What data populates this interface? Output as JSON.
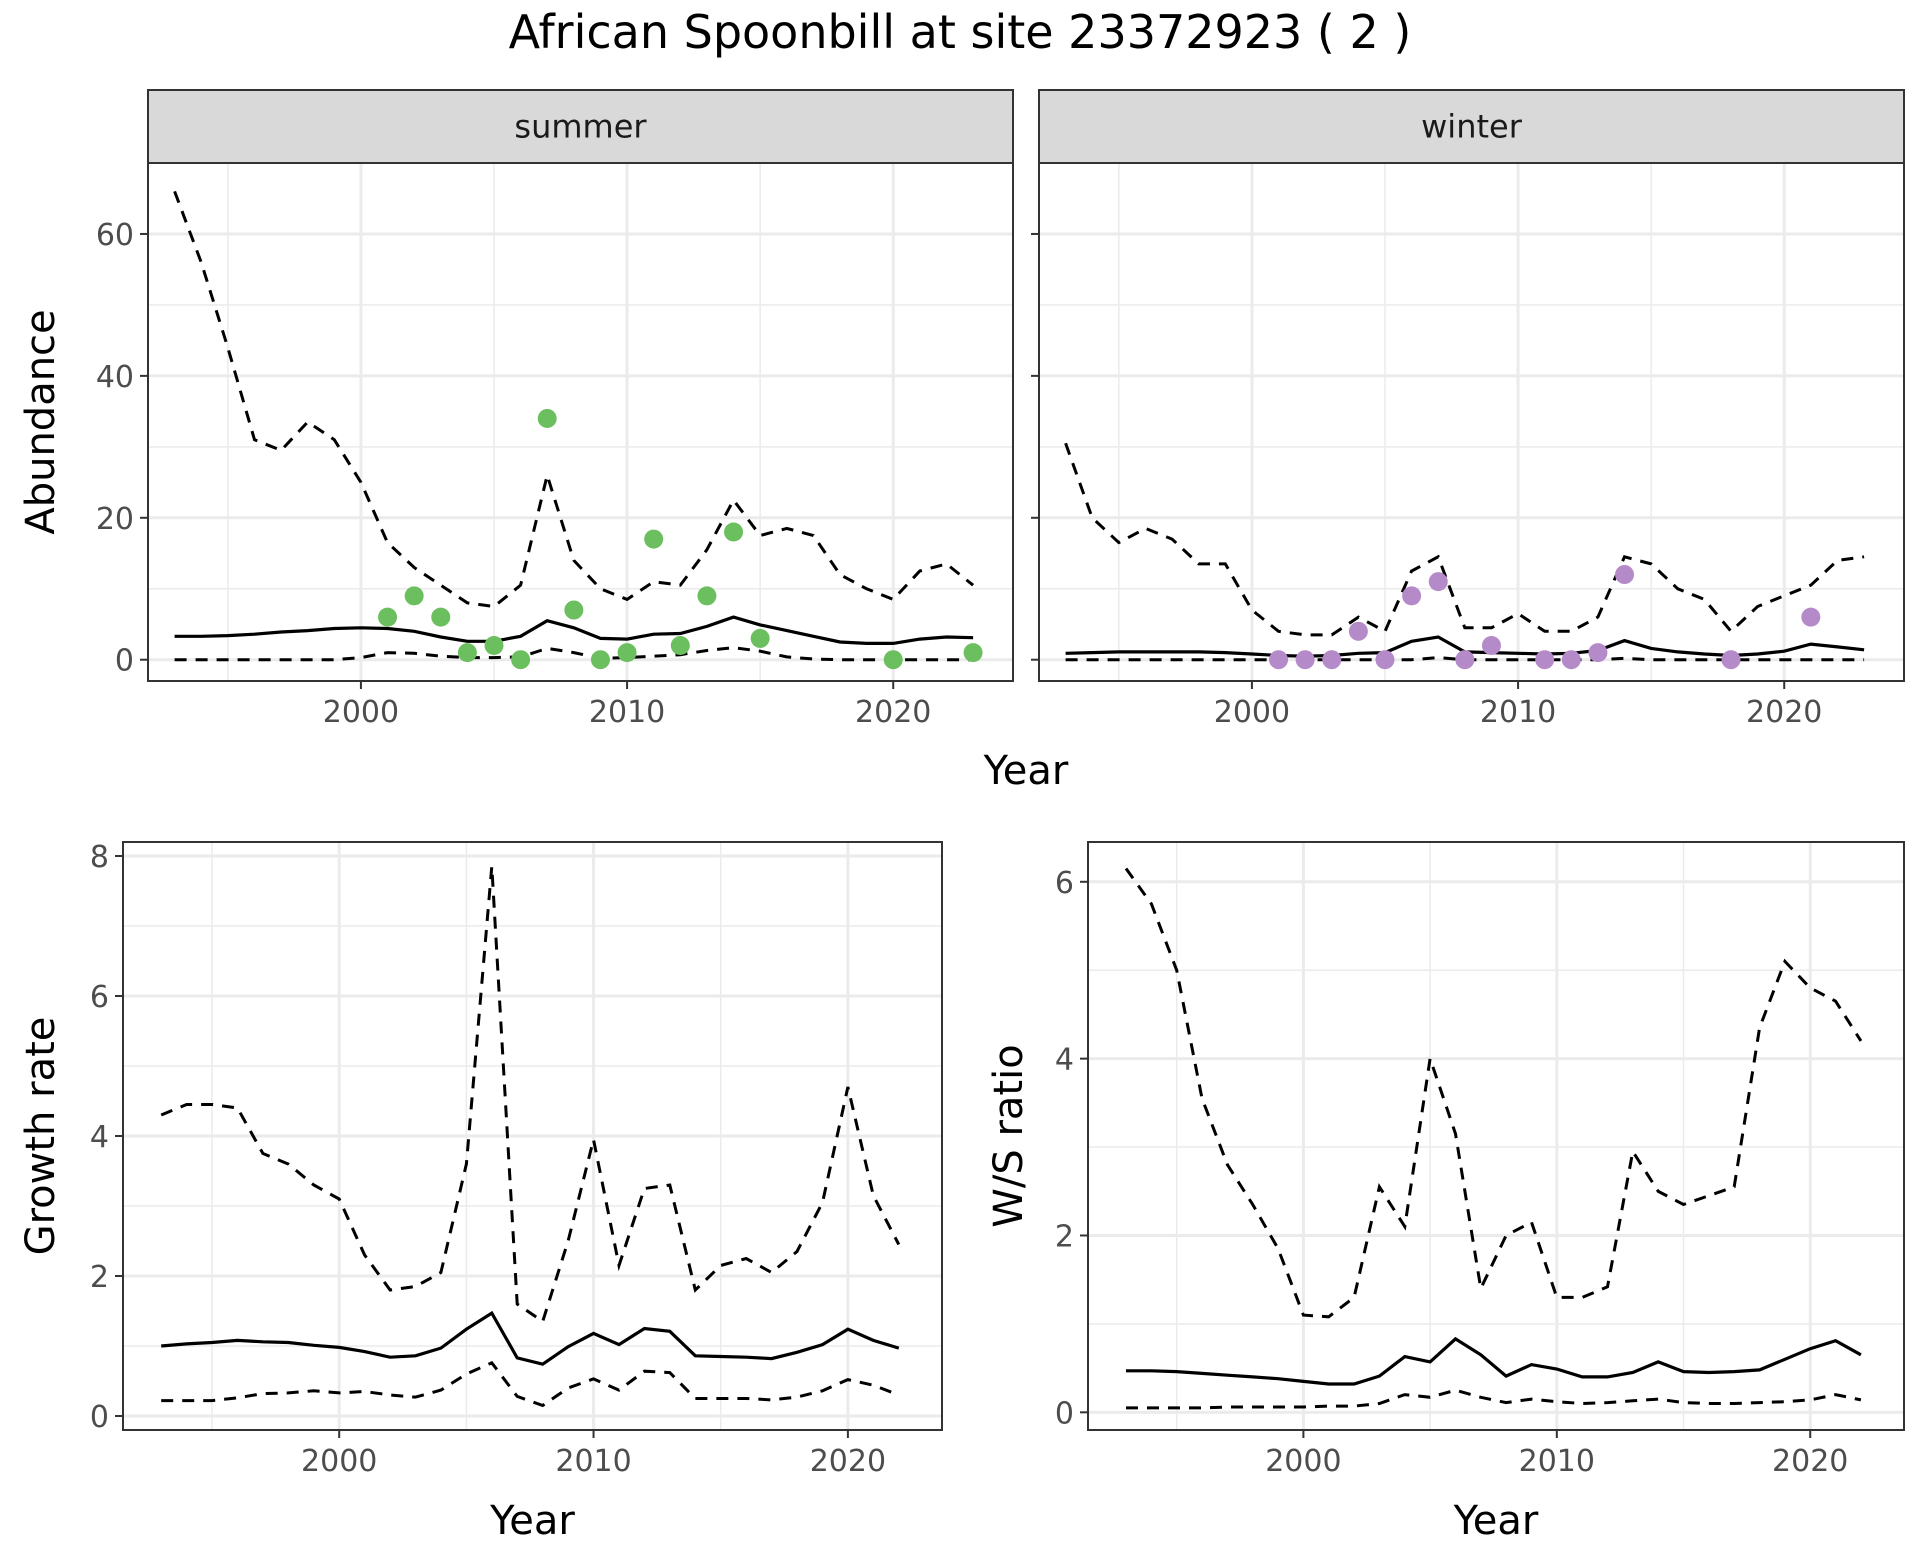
{
  "title": "African Spoonbill at site 23372923 ( 2 )",
  "colors": {
    "summer_points": "#6cbf5f",
    "winter_points": "#b58ac9",
    "line": "#000000",
    "grid": "#ebebeb",
    "strip_bg": "#d9d9d9",
    "border": "#333333"
  },
  "chart_data": [
    {
      "type": "line",
      "panel": "summer",
      "strip_label": "summer",
      "xlabel": "Year",
      "ylabel": "Abundance",
      "xlim": [
        1992,
        2024.5
      ],
      "ylim": [
        -3,
        70
      ],
      "x_ticks": [
        2000,
        2010,
        2020
      ],
      "x_tick_labels": [
        "2000",
        "2010",
        "2020"
      ],
      "y_ticks": [
        0,
        20,
        40,
        60
      ],
      "y_tick_labels": [
        "0",
        "20",
        "40",
        "60"
      ],
      "grid": true,
      "x": [
        1993,
        1994,
        1995,
        1996,
        1997,
        1998,
        1999,
        2000,
        2001,
        2002,
        2003,
        2004,
        2005,
        2006,
        2007,
        2008,
        2009,
        2010,
        2011,
        2012,
        2013,
        2014,
        2015,
        2016,
        2017,
        2018,
        2019,
        2020,
        2021,
        2022,
        2023
      ],
      "mean": [
        3.3,
        3.3,
        3.4,
        3.6,
        3.9,
        4.1,
        4.4,
        4.5,
        4.4,
        4.0,
        3.2,
        2.6,
        2.6,
        3.3,
        5.5,
        4.5,
        3.0,
        2.9,
        3.6,
        3.7,
        4.7,
        6.0,
        4.9,
        4.1,
        3.3,
        2.5,
        2.3,
        2.3,
        2.9,
        3.2,
        3.1
      ],
      "upper": [
        66,
        56,
        44,
        31,
        29.5,
        33.5,
        31,
        25,
        16.5,
        13,
        10.5,
        8,
        7.5,
        10.5,
        26,
        14,
        10,
        8.5,
        11,
        10.5,
        15.5,
        22.5,
        17.5,
        18.5,
        17.5,
        12,
        10,
        8.5,
        12.5,
        13.5,
        10.5
      ],
      "lower": [
        0,
        0,
        0,
        0,
        0,
        0,
        0,
        0.3,
        1.0,
        0.9,
        0.5,
        0.3,
        0.3,
        0.4,
        1.6,
        1.0,
        0.2,
        0.3,
        0.5,
        0.7,
        1.3,
        1.7,
        1.2,
        0.4,
        0.1,
        0,
        0,
        0,
        0,
        0,
        0
      ],
      "points": {
        "x": [
          2001,
          2002,
          2003,
          2004,
          2005,
          2006,
          2007,
          2008,
          2009,
          2010,
          2011,
          2012,
          2013,
          2014,
          2015,
          2020,
          2023
        ],
        "y": [
          6,
          9,
          6,
          1,
          2,
          0,
          34,
          7,
          0,
          1,
          17,
          2,
          9,
          18,
          3,
          0,
          1
        ]
      }
    },
    {
      "type": "line",
      "panel": "winter",
      "strip_label": "winter",
      "xlabel": "Year",
      "ylabel": "",
      "xlim": [
        1992,
        2024.5
      ],
      "ylim": [
        -3,
        70
      ],
      "x_ticks": [
        2000,
        2010,
        2020
      ],
      "x_tick_labels": [
        "2000",
        "2010",
        "2020"
      ],
      "y_ticks": [
        0,
        20,
        40,
        60
      ],
      "y_tick_labels": [],
      "grid": true,
      "x": [
        1993,
        1994,
        1995,
        1996,
        1997,
        1998,
        1999,
        2000,
        2001,
        2002,
        2003,
        2004,
        2005,
        2006,
        2007,
        2008,
        2009,
        2010,
        2011,
        2012,
        2013,
        2014,
        2015,
        2016,
        2017,
        2018,
        2019,
        2020,
        2021,
        2022,
        2023
      ],
      "mean": [
        0.9,
        1.0,
        1.1,
        1.1,
        1.1,
        1.1,
        1.0,
        0.8,
        0.6,
        0.5,
        0.6,
        0.9,
        1.0,
        2.6,
        3.2,
        1.1,
        1.0,
        0.9,
        0.8,
        0.9,
        1.3,
        2.7,
        1.6,
        1.1,
        0.8,
        0.6,
        0.8,
        1.2,
        2.2,
        1.8,
        1.4
      ],
      "upper": [
        30.5,
        20,
        16.5,
        18.5,
        17,
        13.5,
        13.5,
        7,
        4,
        3.5,
        3.5,
        6,
        4,
        12.5,
        14.5,
        4.5,
        4.5,
        6.5,
        4,
        4,
        6,
        14.5,
        13.5,
        10,
        8.5,
        4,
        7.5,
        9,
        10.5,
        14,
        14.5
      ],
      "lower": [
        0,
        0,
        0,
        0,
        0,
        0,
        0,
        0,
        0,
        0,
        0,
        0,
        0,
        0,
        0.3,
        0,
        0,
        0,
        0,
        0,
        0,
        0.2,
        0,
        0,
        0,
        0,
        0,
        0,
        0,
        0,
        0
      ],
      "points": {
        "x": [
          2001,
          2002,
          2003,
          2004,
          2005,
          2006,
          2007,
          2008,
          2009,
          2011,
          2012,
          2013,
          2014,
          2018,
          2021
        ],
        "y": [
          0,
          0,
          0,
          4,
          0,
          9,
          11,
          0,
          2,
          0,
          0,
          1,
          12,
          0,
          6
        ]
      }
    },
    {
      "type": "line",
      "panel": "growth",
      "xlabel": "Year",
      "ylabel": "Growth rate",
      "xlim": [
        1991.5,
        2023.7
      ],
      "ylim": [
        -0.2,
        8.2
      ],
      "x_ticks": [
        2000,
        2010,
        2020
      ],
      "x_tick_labels": [
        "2000",
        "2010",
        "2020"
      ],
      "y_ticks": [
        0,
        2,
        4,
        6,
        8
      ],
      "y_tick_labels": [
        "0",
        "2",
        "4",
        "6",
        "8"
      ],
      "grid": true,
      "x": [
        1993,
        1994,
        1995,
        1996,
        1997,
        1998,
        1999,
        2000,
        2001,
        2002,
        2003,
        2004,
        2005,
        2006,
        2007,
        2008,
        2009,
        2010,
        2011,
        2012,
        2013,
        2014,
        2015,
        2016,
        2017,
        2018,
        2019,
        2020,
        2021,
        2022
      ],
      "mean": [
        1.0,
        1.03,
        1.05,
        1.08,
        1.06,
        1.05,
        1.01,
        0.98,
        0.92,
        0.84,
        0.86,
        0.97,
        1.24,
        1.47,
        0.83,
        0.74,
        0.99,
        1.18,
        1.02,
        1.25,
        1.21,
        0.86,
        0.85,
        0.84,
        0.82,
        0.91,
        1.02,
        1.24,
        1.08,
        0.97
      ],
      "upper": [
        4.3,
        4.45,
        4.45,
        4.4,
        3.75,
        3.6,
        3.3,
        3.1,
        2.3,
        1.8,
        1.85,
        2.05,
        3.6,
        7.85,
        1.6,
        1.35,
        2.5,
        3.95,
        2.15,
        3.25,
        3.3,
        1.8,
        2.15,
        2.25,
        2.05,
        2.35,
        3.05,
        4.7,
        3.15,
        2.45
      ],
      "lower": [
        0.22,
        0.22,
        0.22,
        0.26,
        0.32,
        0.33,
        0.36,
        0.33,
        0.35,
        0.3,
        0.27,
        0.37,
        0.6,
        0.76,
        0.28,
        0.15,
        0.4,
        0.53,
        0.37,
        0.64,
        0.62,
        0.25,
        0.25,
        0.25,
        0.23,
        0.27,
        0.36,
        0.52,
        0.44,
        0.3
      ]
    },
    {
      "type": "line",
      "panel": "ws_ratio",
      "xlabel": "Year",
      "ylabel": "W/S ratio",
      "xlim": [
        1991.5,
        2023.7
      ],
      "ylim": [
        -0.2,
        6.45
      ],
      "x_ticks": [
        2000,
        2010,
        2020
      ],
      "x_tick_labels": [
        "2000",
        "2010",
        "2020"
      ],
      "y_ticks": [
        0,
        2,
        4,
        6
      ],
      "y_tick_labels": [
        "0",
        "2",
        "4",
        "6"
      ],
      "grid": true,
      "x": [
        1993,
        1994,
        1995,
        1996,
        1997,
        1998,
        1999,
        2000,
        2001,
        2002,
        2003,
        2004,
        2005,
        2006,
        2007,
        2008,
        2009,
        2010,
        2011,
        2012,
        2013,
        2014,
        2015,
        2016,
        2017,
        2018,
        2019,
        2020,
        2021,
        2022
      ],
      "mean": [
        0.47,
        0.47,
        0.46,
        0.44,
        0.42,
        0.4,
        0.38,
        0.35,
        0.32,
        0.32,
        0.41,
        0.63,
        0.57,
        0.83,
        0.65,
        0.41,
        0.54,
        0.49,
        0.4,
        0.4,
        0.45,
        0.57,
        0.46,
        0.45,
        0.46,
        0.48,
        0.6,
        0.72,
        0.81,
        0.65
      ],
      "upper": [
        6.15,
        5.75,
        5.0,
        3.55,
        2.8,
        2.35,
        1.85,
        1.1,
        1.08,
        1.3,
        2.55,
        2.1,
        4.0,
        3.15,
        1.4,
        2.0,
        2.15,
        1.3,
        1.3,
        1.42,
        2.95,
        2.5,
        2.35,
        2.45,
        2.55,
        4.35,
        5.1,
        4.8,
        4.65,
        4.2
      ],
      "lower": [
        0.05,
        0.05,
        0.05,
        0.05,
        0.06,
        0.06,
        0.06,
        0.06,
        0.07,
        0.07,
        0.1,
        0.2,
        0.17,
        0.25,
        0.17,
        0.11,
        0.15,
        0.12,
        0.1,
        0.11,
        0.13,
        0.15,
        0.11,
        0.1,
        0.1,
        0.11,
        0.12,
        0.14,
        0.2,
        0.14
      ]
    }
  ]
}
